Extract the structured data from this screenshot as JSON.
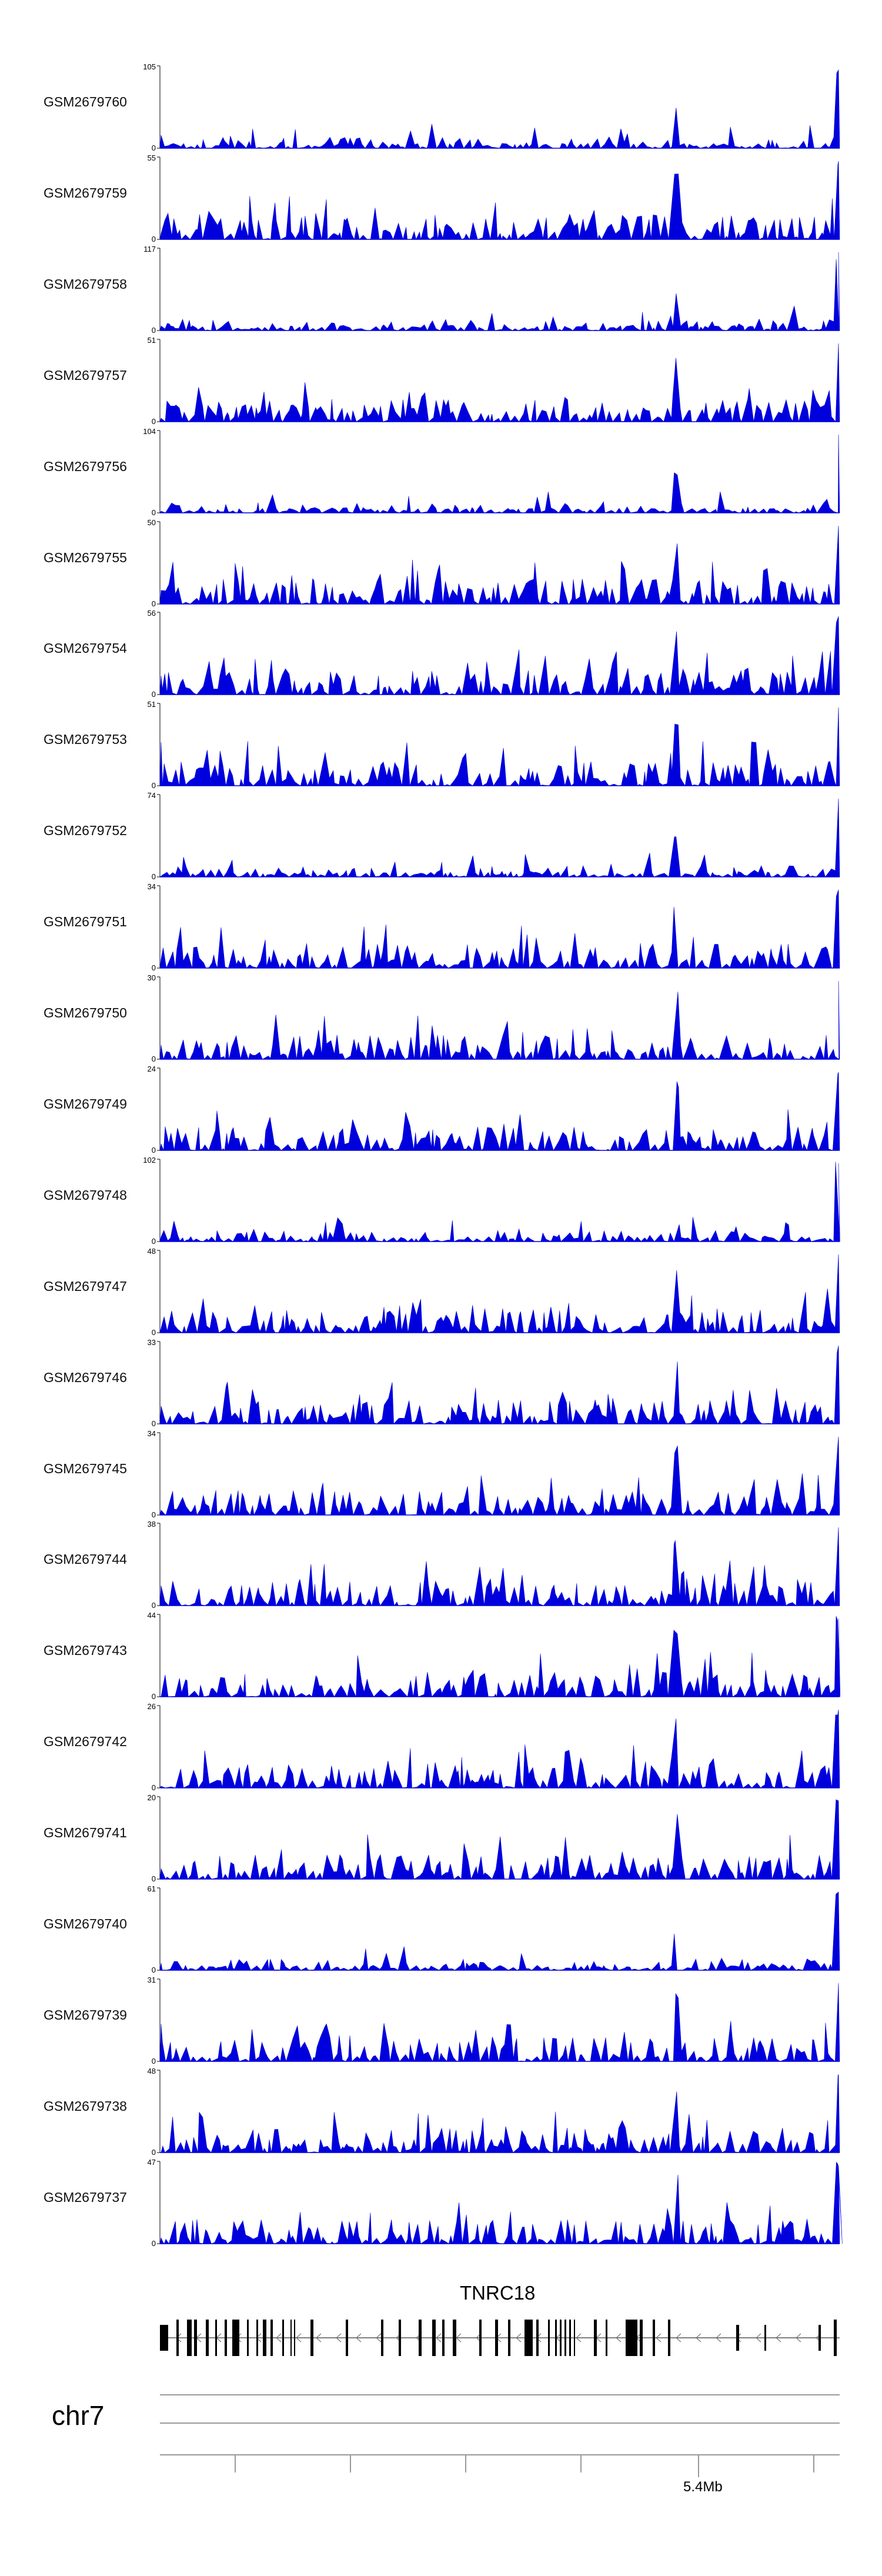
{
  "chart_data": {
    "type": "area",
    "series_color": "#0000dd",
    "tracks": [
      {
        "name": "GSM2679760",
        "max": 105
      },
      {
        "name": "GSM2679759",
        "max": 55
      },
      {
        "name": "GSM2679758",
        "max": 117
      },
      {
        "name": "GSM2679757",
        "max": 51
      },
      {
        "name": "GSM2679756",
        "max": 104
      },
      {
        "name": "GSM2679755",
        "max": 50
      },
      {
        "name": "GSM2679754",
        "max": 56
      },
      {
        "name": "GSM2679753",
        "max": 51
      },
      {
        "name": "GSM2679752",
        "max": 74
      },
      {
        "name": "GSM2679751",
        "max": 34
      },
      {
        "name": "GSM2679750",
        "max": 30
      },
      {
        "name": "GSM2679749",
        "max": 24
      },
      {
        "name": "GSM2679748",
        "max": 102
      },
      {
        "name": "GSM2679747",
        "max": 48
      },
      {
        "name": "GSM2679746",
        "max": 33
      },
      {
        "name": "GSM2679745",
        "max": 34
      },
      {
        "name": "GSM2679744",
        "max": 38
      },
      {
        "name": "GSM2679743",
        "max": 44
      },
      {
        "name": "GSM2679742",
        "max": 26
      },
      {
        "name": "GSM2679741",
        "max": 20
      },
      {
        "name": "GSM2679740",
        "max": 61
      },
      {
        "name": "GSM2679739",
        "max": 31
      },
      {
        "name": "GSM2679738",
        "max": 48
      },
      {
        "name": "GSM2679737",
        "max": 47
      }
    ],
    "ymin_label": "0",
    "gene": "TNRC18",
    "chromosome": "chr7",
    "axis_tick_label": "5.4Mb"
  }
}
